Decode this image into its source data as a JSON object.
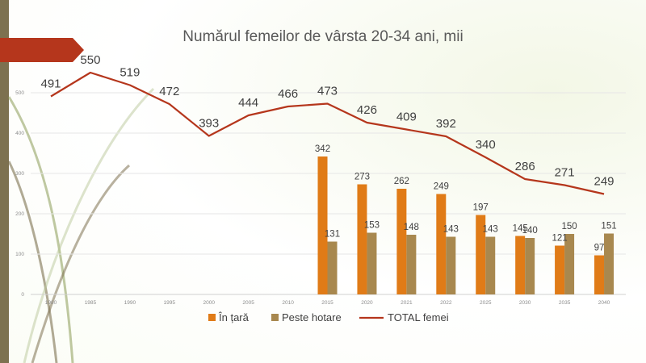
{
  "chart_data": {
    "type": "bar+line",
    "title": "Numărul femeilor de vârsta 20-34 ani, mii",
    "categories": [
      "1980",
      "1985",
      "1990",
      "1995",
      "2000",
      "2005",
      "2010",
      "2015",
      "2020",
      "2021",
      "2022",
      "2025",
      "2030",
      "2035",
      "2040"
    ],
    "series": [
      {
        "name": "În țară",
        "type": "bar",
        "color": "#e07b17",
        "values": [
          null,
          null,
          null,
          null,
          null,
          null,
          null,
          342,
          273,
          262,
          249,
          197,
          145,
          121,
          97
        ]
      },
      {
        "name": "Peste hotare",
        "type": "bar",
        "color": "#a8884f",
        "values": [
          null,
          null,
          null,
          null,
          null,
          null,
          null,
          131,
          153,
          148,
          143,
          143,
          140,
          150,
          151
        ]
      },
      {
        "name": "TOTAL femei",
        "type": "line",
        "color": "#b5361c",
        "values": [
          491,
          550,
          519,
          472,
          393,
          444,
          466,
          473,
          426,
          409,
          392,
          340,
          286,
          271,
          249
        ]
      }
    ],
    "yticks": [
      0,
      100,
      200,
      300,
      400,
      500
    ],
    "ylim": [
      0,
      600
    ],
    "legend_position": "bottom"
  }
}
